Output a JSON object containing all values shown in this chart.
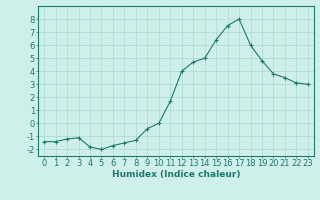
{
  "x": [
    0,
    1,
    2,
    3,
    4,
    5,
    6,
    7,
    8,
    9,
    10,
    11,
    12,
    13,
    14,
    15,
    16,
    17,
    18,
    19,
    20,
    21,
    22,
    23
  ],
  "y": [
    -1.4,
    -1.4,
    -1.2,
    -1.1,
    -1.8,
    -2.0,
    -1.7,
    -1.5,
    -1.3,
    -0.4,
    0.0,
    1.7,
    4.0,
    4.7,
    5.0,
    6.4,
    7.5,
    8.0,
    6.0,
    4.8,
    3.8,
    3.5,
    3.1,
    3.0
  ],
  "xlim": [
    -0.5,
    23.5
  ],
  "ylim": [
    -2.5,
    9.0
  ],
  "yticks": [
    -2,
    -1,
    0,
    1,
    2,
    3,
    4,
    5,
    6,
    7,
    8
  ],
  "xticks": [
    0,
    1,
    2,
    3,
    4,
    5,
    6,
    7,
    8,
    9,
    10,
    11,
    12,
    13,
    14,
    15,
    16,
    17,
    18,
    19,
    20,
    21,
    22,
    23
  ],
  "xlabel": "Humidex (Indice chaleur)",
  "line_color": "#1a7a6e",
  "marker": "+",
  "bg_color": "#cff0ea",
  "grid_color": "#b0ddd6",
  "axis_color": "#1a7a6e",
  "label_color": "#1a7a6e",
  "xlabel_fontsize": 6.5,
  "tick_fontsize": 6.0
}
